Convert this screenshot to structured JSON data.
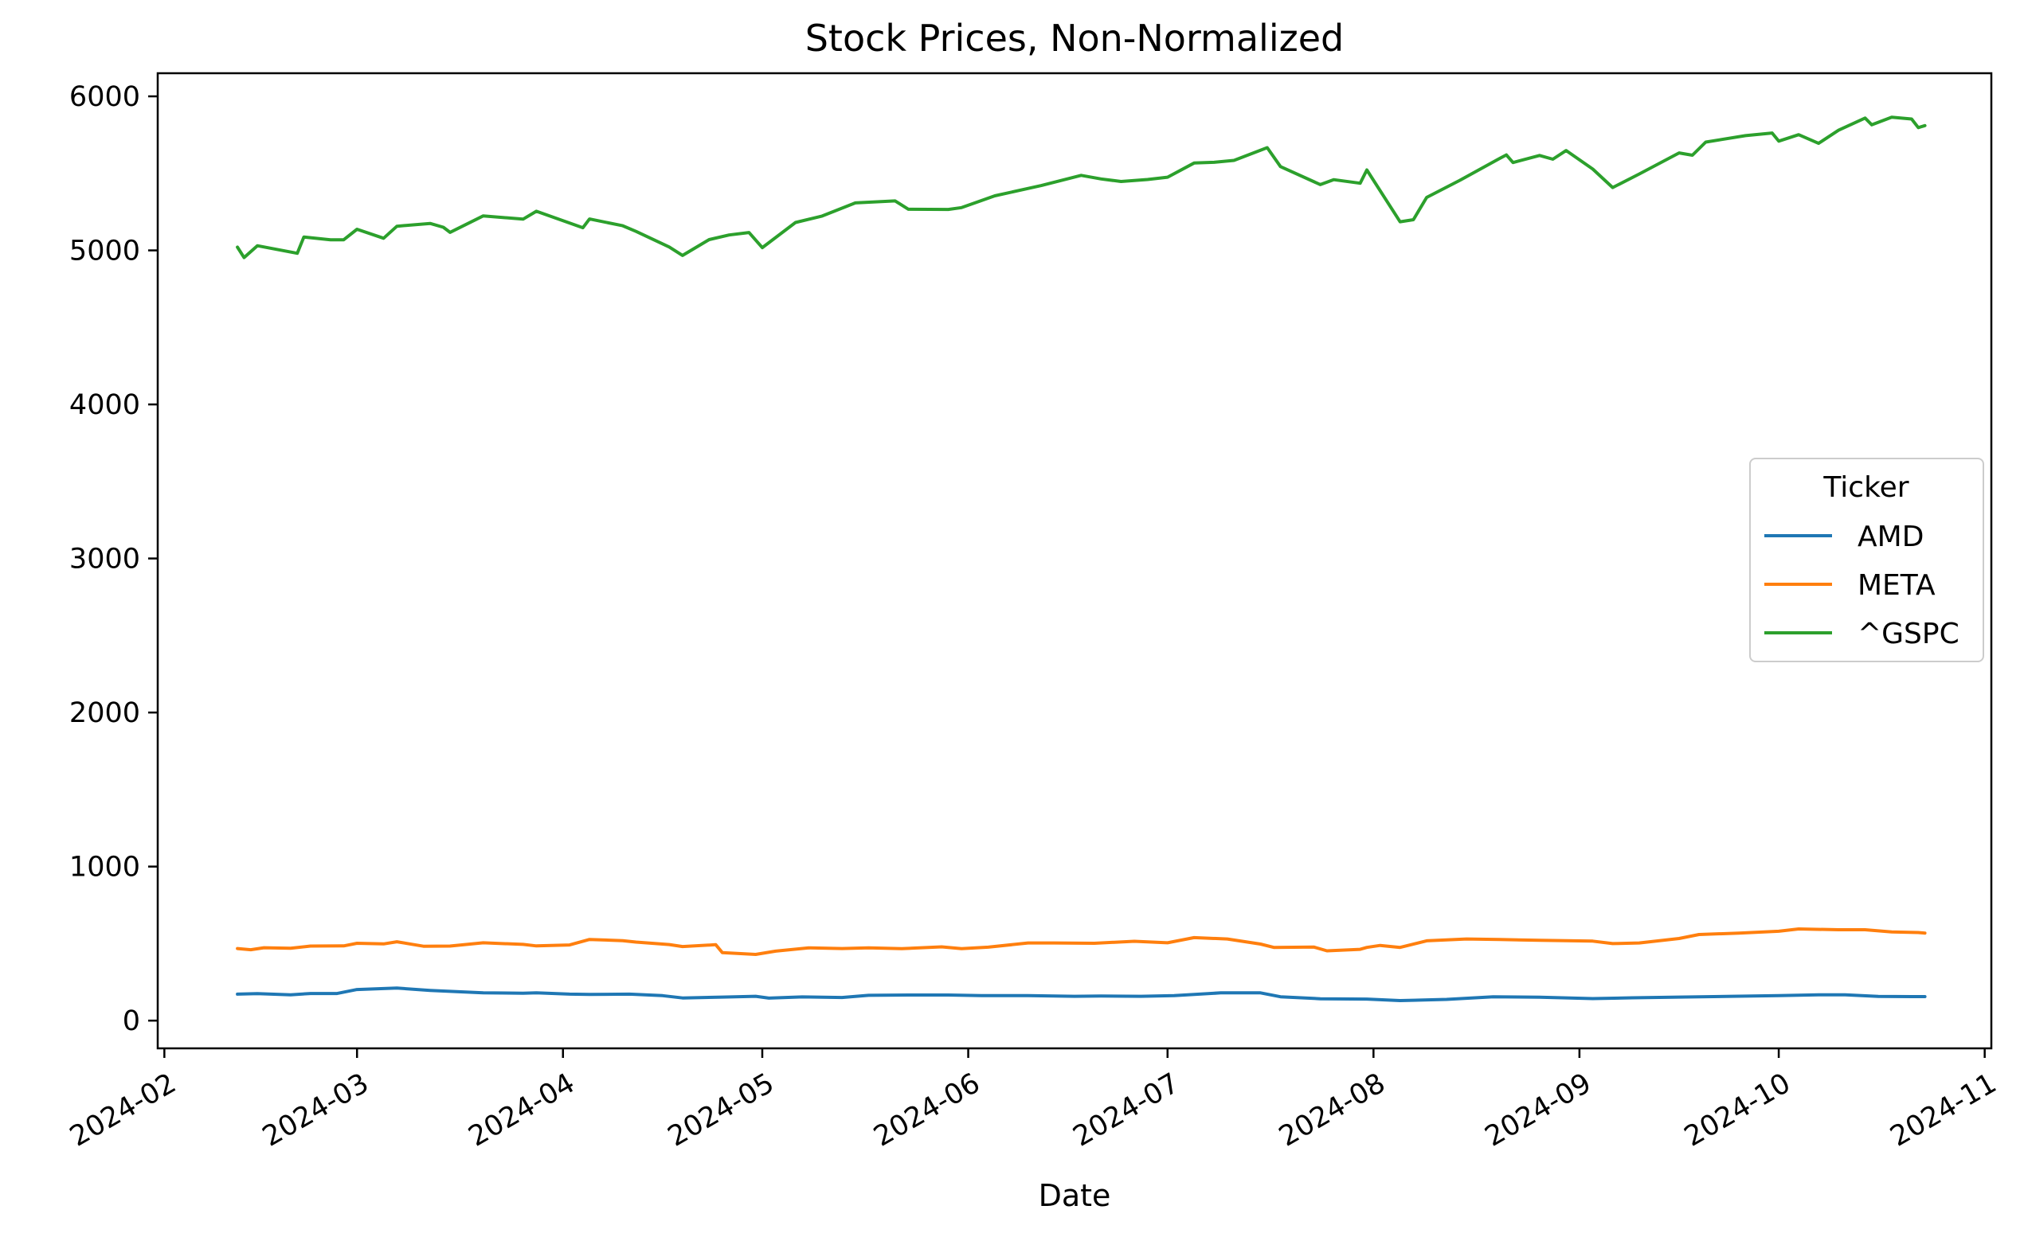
{
  "chart_data": {
    "type": "line",
    "title": "Stock Prices, Non-Normalized",
    "xlabel": "Date",
    "ylabel": "",
    "x_type": "date",
    "xlim": [
      "2024-01-31",
      "2024-11-02"
    ],
    "ylim": [
      -180,
      6150
    ],
    "x_ticks": [
      "2024-02-01",
      "2024-03-01",
      "2024-04-01",
      "2024-05-01",
      "2024-06-01",
      "2024-07-01",
      "2024-08-01",
      "2024-09-01",
      "2024-10-01",
      "2024-11-01"
    ],
    "x_tick_labels": [
      "2024-02",
      "2024-03",
      "2024-04",
      "2024-05",
      "2024-06",
      "2024-07",
      "2024-08",
      "2024-09",
      "2024-10",
      "2024-11"
    ],
    "y_ticks": [
      0,
      1000,
      2000,
      3000,
      4000,
      5000,
      6000
    ],
    "y_tick_labels": [
      "0",
      "1000",
      "2000",
      "3000",
      "4000",
      "5000",
      "6000"
    ],
    "grid": false,
    "legend": {
      "title": "Ticker",
      "position": "center-right"
    },
    "series": [
      {
        "name": "AMD",
        "color": "#1f77b4",
        "points": [
          [
            "2024-02-12",
            172
          ],
          [
            "2024-02-15",
            175
          ],
          [
            "2024-02-20",
            168
          ],
          [
            "2024-02-23",
            176
          ],
          [
            "2024-02-27",
            176
          ],
          [
            "2024-03-01",
            202
          ],
          [
            "2024-03-07",
            211
          ],
          [
            "2024-03-12",
            196
          ],
          [
            "2024-03-15",
            190
          ],
          [
            "2024-03-20",
            180
          ],
          [
            "2024-03-26",
            178
          ],
          [
            "2024-03-28",
            180
          ],
          [
            "2024-04-02",
            172
          ],
          [
            "2024-04-05",
            170
          ],
          [
            "2024-04-11",
            172
          ],
          [
            "2024-04-16",
            162
          ],
          [
            "2024-04-19",
            147
          ],
          [
            "2024-04-25",
            153
          ],
          [
            "2024-04-30",
            158
          ],
          [
            "2024-05-02",
            146
          ],
          [
            "2024-05-07",
            154
          ],
          [
            "2024-05-13",
            150
          ],
          [
            "2024-05-17",
            164
          ],
          [
            "2024-05-23",
            166
          ],
          [
            "2024-05-29",
            166
          ],
          [
            "2024-06-03",
            162
          ],
          [
            "2024-06-10",
            162
          ],
          [
            "2024-06-17",
            158
          ],
          [
            "2024-06-21",
            160
          ],
          [
            "2024-06-27",
            158
          ],
          [
            "2024-07-02",
            162
          ],
          [
            "2024-07-09",
            180
          ],
          [
            "2024-07-15",
            180
          ],
          [
            "2024-07-18",
            155
          ],
          [
            "2024-07-24",
            142
          ],
          [
            "2024-07-31",
            140
          ],
          [
            "2024-08-05",
            130
          ],
          [
            "2024-08-12",
            138
          ],
          [
            "2024-08-19",
            155
          ],
          [
            "2024-08-26",
            152
          ],
          [
            "2024-09-03",
            143
          ],
          [
            "2024-09-09",
            148
          ],
          [
            "2024-09-16",
            153
          ],
          [
            "2024-09-24",
            158
          ],
          [
            "2024-10-01",
            162
          ],
          [
            "2024-10-07",
            168
          ],
          [
            "2024-10-11",
            168
          ],
          [
            "2024-10-16",
            157
          ],
          [
            "2024-10-21",
            156
          ],
          [
            "2024-10-23",
            156
          ]
        ]
      },
      {
        "name": "META",
        "color": "#ff7f0e",
        "points": [
          [
            "2024-02-12",
            468
          ],
          [
            "2024-02-14",
            460
          ],
          [
            "2024-02-16",
            473
          ],
          [
            "2024-02-20",
            470
          ],
          [
            "2024-02-23",
            484
          ],
          [
            "2024-02-28",
            485
          ],
          [
            "2024-03-01",
            502
          ],
          [
            "2024-03-05",
            498
          ],
          [
            "2024-03-07",
            512
          ],
          [
            "2024-03-11",
            483
          ],
          [
            "2024-03-15",
            484
          ],
          [
            "2024-03-20",
            505
          ],
          [
            "2024-03-26",
            495
          ],
          [
            "2024-03-28",
            485
          ],
          [
            "2024-04-02",
            491
          ],
          [
            "2024-04-05",
            527
          ],
          [
            "2024-04-10",
            519
          ],
          [
            "2024-04-12",
            510
          ],
          [
            "2024-04-17",
            494
          ],
          [
            "2024-04-19",
            481
          ],
          [
            "2024-04-24",
            493
          ],
          [
            "2024-04-25",
            441
          ],
          [
            "2024-04-30",
            430
          ],
          [
            "2024-05-03",
            451
          ],
          [
            "2024-05-08",
            472
          ],
          [
            "2024-05-13",
            468
          ],
          [
            "2024-05-17",
            472
          ],
          [
            "2024-05-22",
            467
          ],
          [
            "2024-05-28",
            479
          ],
          [
            "2024-05-31",
            467
          ],
          [
            "2024-06-04",
            477
          ],
          [
            "2024-06-10",
            504
          ],
          [
            "2024-06-14",
            504
          ],
          [
            "2024-06-20",
            502
          ],
          [
            "2024-06-26",
            515
          ],
          [
            "2024-07-01",
            505
          ],
          [
            "2024-07-05",
            539
          ],
          [
            "2024-07-10",
            530
          ],
          [
            "2024-07-15",
            497
          ],
          [
            "2024-07-17",
            475
          ],
          [
            "2024-07-23",
            478
          ],
          [
            "2024-07-25",
            453
          ],
          [
            "2024-07-30",
            463
          ],
          [
            "2024-07-31",
            475
          ],
          [
            "2024-08-02",
            488
          ],
          [
            "2024-08-05",
            475
          ],
          [
            "2024-08-09",
            518
          ],
          [
            "2024-08-15",
            530
          ],
          [
            "2024-08-20",
            527
          ],
          [
            "2024-08-26",
            521
          ],
          [
            "2024-09-03",
            516
          ],
          [
            "2024-09-06",
            500
          ],
          [
            "2024-09-10",
            504
          ],
          [
            "2024-09-16",
            533
          ],
          [
            "2024-09-19",
            559
          ],
          [
            "2024-09-25",
            568
          ],
          [
            "2024-10-01",
            580
          ],
          [
            "2024-10-04",
            595
          ],
          [
            "2024-10-10",
            590
          ],
          [
            "2024-10-14",
            590
          ],
          [
            "2024-10-18",
            576
          ],
          [
            "2024-10-22",
            572
          ],
          [
            "2024-10-23",
            568
          ]
        ]
      },
      {
        "name": "^GSPC",
        "color": "#2ca02c",
        "points": [
          [
            "2024-02-12",
            5021
          ],
          [
            "2024-02-13",
            4953
          ],
          [
            "2024-02-15",
            5030
          ],
          [
            "2024-02-21",
            4981
          ],
          [
            "2024-02-22",
            5087
          ],
          [
            "2024-02-26",
            5069
          ],
          [
            "2024-02-28",
            5069
          ],
          [
            "2024-03-01",
            5137
          ],
          [
            "2024-03-05",
            5079
          ],
          [
            "2024-03-07",
            5157
          ],
          [
            "2024-03-12",
            5175
          ],
          [
            "2024-03-14",
            5150
          ],
          [
            "2024-03-15",
            5117
          ],
          [
            "2024-03-20",
            5224
          ],
          [
            "2024-03-26",
            5203
          ],
          [
            "2024-03-28",
            5254
          ],
          [
            "2024-04-04",
            5147
          ],
          [
            "2024-04-05",
            5204
          ],
          [
            "2024-04-10",
            5160
          ],
          [
            "2024-04-12",
            5123
          ],
          [
            "2024-04-17",
            5022
          ],
          [
            "2024-04-19",
            4967
          ],
          [
            "2024-04-23",
            5070
          ],
          [
            "2024-04-26",
            5100
          ],
          [
            "2024-04-29",
            5116
          ],
          [
            "2024-05-01",
            5018
          ],
          [
            "2024-05-06",
            5181
          ],
          [
            "2024-05-10",
            5223
          ],
          [
            "2024-05-15",
            5308
          ],
          [
            "2024-05-21",
            5321
          ],
          [
            "2024-05-23",
            5267
          ],
          [
            "2024-05-29",
            5266
          ],
          [
            "2024-05-31",
            5278
          ],
          [
            "2024-06-05",
            5354
          ],
          [
            "2024-06-12",
            5421
          ],
          [
            "2024-06-18",
            5487
          ],
          [
            "2024-06-21",
            5464
          ],
          [
            "2024-06-24",
            5447
          ],
          [
            "2024-06-28",
            5460
          ],
          [
            "2024-07-01",
            5475
          ],
          [
            "2024-07-05",
            5567
          ],
          [
            "2024-07-08",
            5572
          ],
          [
            "2024-07-11",
            5584
          ],
          [
            "2024-07-16",
            5667
          ],
          [
            "2024-07-18",
            5544
          ],
          [
            "2024-07-24",
            5427
          ],
          [
            "2024-07-26",
            5459
          ],
          [
            "2024-07-30",
            5436
          ],
          [
            "2024-07-31",
            5522
          ],
          [
            "2024-08-05",
            5186
          ],
          [
            "2024-08-07",
            5199
          ],
          [
            "2024-08-09",
            5344
          ],
          [
            "2024-08-14",
            5455
          ],
          [
            "2024-08-20",
            5597
          ],
          [
            "2024-08-21",
            5620
          ],
          [
            "2024-08-22",
            5570
          ],
          [
            "2024-08-26",
            5616
          ],
          [
            "2024-08-28",
            5592
          ],
          [
            "2024-08-30",
            5648
          ],
          [
            "2024-09-03",
            5528
          ],
          [
            "2024-09-06",
            5408
          ],
          [
            "2024-09-10",
            5496
          ],
          [
            "2024-09-16",
            5633
          ],
          [
            "2024-09-18",
            5618
          ],
          [
            "2024-09-20",
            5703
          ],
          [
            "2024-09-26",
            5745
          ],
          [
            "2024-09-30",
            5762
          ],
          [
            "2024-10-01",
            5709
          ],
          [
            "2024-10-04",
            5751
          ],
          [
            "2024-10-07",
            5695
          ],
          [
            "2024-10-10",
            5780
          ],
          [
            "2024-10-14",
            5859
          ],
          [
            "2024-10-15",
            5815
          ],
          [
            "2024-10-18",
            5864
          ],
          [
            "2024-10-21",
            5853
          ],
          [
            "2024-10-22",
            5797
          ],
          [
            "2024-10-23",
            5810
          ]
        ]
      }
    ]
  }
}
